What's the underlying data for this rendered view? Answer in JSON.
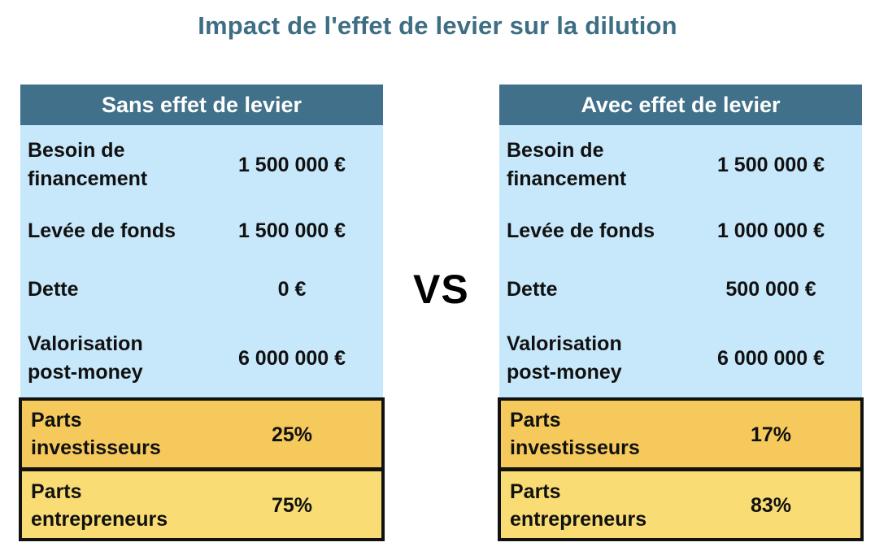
{
  "title": "Impact de l'effet de levier sur la dilution",
  "vs_label": "VS",
  "colors": {
    "title": "#3d6e84",
    "header_bg": "#41718a",
    "body_bg": "#c7e8fb",
    "investors_bg": "#f5c95c",
    "founders_bg": "#f9dd74"
  },
  "left": {
    "header": "Sans effet de levier",
    "rows": [
      {
        "label_line1": "Besoin de",
        "label_line2": "financement",
        "value": "1 500 000 €"
      },
      {
        "label_line1": "Levée de fonds",
        "label_line2": "",
        "value": "1 500 000 €"
      },
      {
        "label_line1": "Dette",
        "label_line2": "",
        "value": "0 €"
      },
      {
        "label_line1": "Valorisation",
        "label_line2": "post-money",
        "value": "6 000 000 €"
      }
    ],
    "investors": {
      "label_line1": "Parts",
      "label_line2": "investisseurs",
      "value": "25%"
    },
    "founders": {
      "label_line1": "Parts",
      "label_line2": "entrepreneurs",
      "value": "75%"
    }
  },
  "right": {
    "header": "Avec effet de levier",
    "rows": [
      {
        "label_line1": "Besoin de",
        "label_line2": "financement",
        "value": "1 500 000 €"
      },
      {
        "label_line1": "Levée de fonds",
        "label_line2": "",
        "value": "1 000 000 €"
      },
      {
        "label_line1": "Dette",
        "label_line2": "",
        "value": "500 000 €"
      },
      {
        "label_line1": "Valorisation",
        "label_line2": "post-money",
        "value": "6 000 000 €"
      }
    ],
    "investors": {
      "label_line1": "Parts",
      "label_line2": "investisseurs",
      "value": "17%"
    },
    "founders": {
      "label_line1": "Parts",
      "label_line2": "entrepreneurs",
      "value": "83%"
    }
  }
}
